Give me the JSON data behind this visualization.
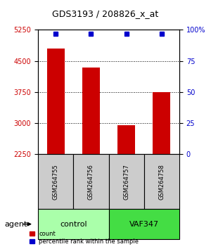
{
  "title": "GDS3193 / 208826_x_at",
  "samples": [
    "GSM264755",
    "GSM264756",
    "GSM264757",
    "GSM264758"
  ],
  "counts": [
    4800,
    4350,
    2950,
    3750
  ],
  "percentile_ranks": [
    99,
    99,
    99,
    99
  ],
  "ylim_left": [
    2250,
    5250
  ],
  "yticks_left": [
    2250,
    3000,
    3750,
    4500,
    5250
  ],
  "yticks_right": [
    0,
    25,
    50,
    75,
    100
  ],
  "ylim_right": [
    0,
    100
  ],
  "bar_color": "#cc0000",
  "dot_color": "#0000cc",
  "groups": [
    {
      "label": "control",
      "samples": [
        0,
        1
      ],
      "color": "#aaffaa"
    },
    {
      "label": "VAF347",
      "samples": [
        2,
        3
      ],
      "color": "#44dd44"
    }
  ],
  "group_row_label": "agent",
  "legend_count_label": "count",
  "legend_pct_label": "percentile rank within the sample",
  "background_color": "#ffffff",
  "plot_bg_color": "#ffffff",
  "sample_box_color": "#cccccc"
}
